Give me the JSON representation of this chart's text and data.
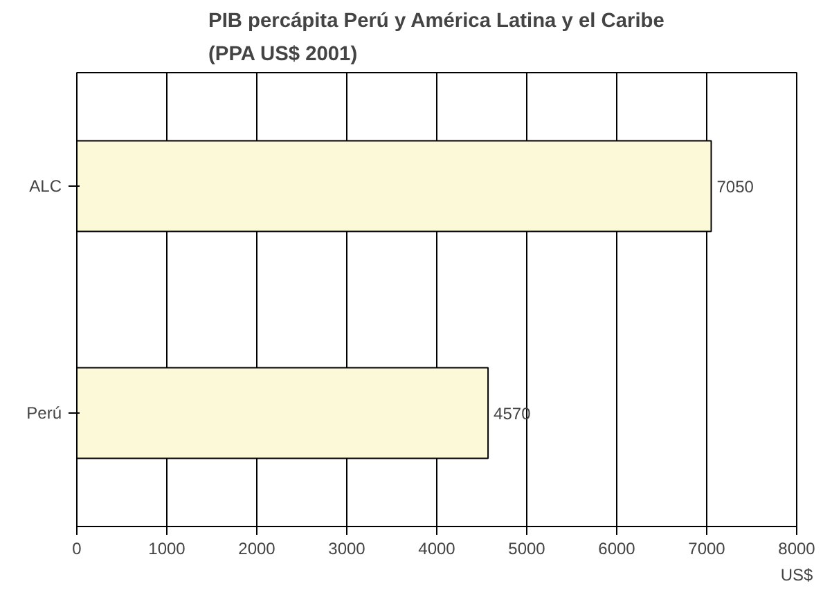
{
  "chart_data": {
    "type": "bar",
    "orientation": "horizontal",
    "title": "PIB percápita Perú y América Latina y el Caribe\n(PPA US$ 2001)",
    "xlabel": "US$",
    "categories": [
      "ALC",
      "Perú"
    ],
    "values": [
      7050,
      4570
    ],
    "color": "#fcf9d8",
    "xlim": [
      0,
      8000
    ],
    "xticks": [
      0,
      1000,
      2000,
      3000,
      4000,
      5000,
      6000,
      7000,
      8000
    ],
    "grid": "x",
    "data_labels": true
  }
}
